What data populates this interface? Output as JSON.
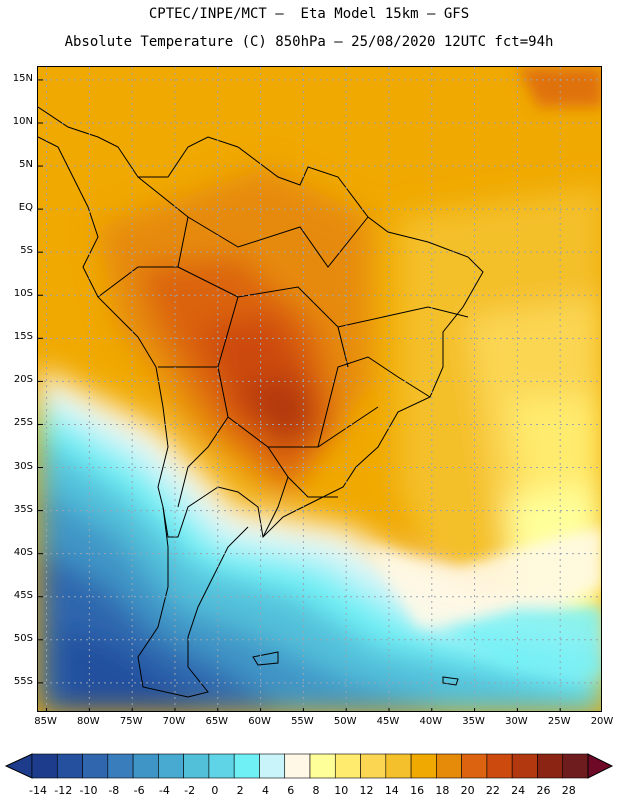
{
  "header": {
    "line1": "CPTEC/INPE/MCT –  Eta Model 15km – GFS",
    "line2": "Absolute Temperature (C) 850hPa – 25/08/2020 12UTC fct=94h"
  },
  "map": {
    "lat_labels": [
      "15N",
      "10N",
      "5N",
      "EQ",
      "5S",
      "10S",
      "15S",
      "20S",
      "25S",
      "30S",
      "35S",
      "40S",
      "45S",
      "50S",
      "55S"
    ],
    "lon_labels": [
      "85W",
      "80W",
      "75W",
      "70W",
      "65W",
      "60W",
      "55W",
      "50W",
      "45W",
      "40W",
      "35W",
      "30W",
      "25W",
      "20W"
    ],
    "lat_values": [
      15,
      10,
      5,
      0,
      -5,
      -10,
      -15,
      -20,
      -25,
      -30,
      -35,
      -40,
      -45,
      -50,
      -55
    ],
    "lon_values": [
      -85,
      -80,
      -75,
      -70,
      -65,
      -60,
      -55,
      -50,
      -45,
      -40,
      -35,
      -30,
      -25,
      -20
    ],
    "lat_range": [
      -58.5,
      16.5
    ],
    "lon_range": [
      -86,
      -20
    ]
  },
  "colorbar": {
    "labels": [
      "-14",
      "-12",
      "-10",
      "-8",
      "-6",
      "-4",
      "-2",
      "0",
      "2",
      "4",
      "6",
      "8",
      "10",
      "12",
      "14",
      "16",
      "18",
      "20",
      "22",
      "24",
      "26",
      "28"
    ],
    "low_color": "#1e3c8c",
    "high_color": "#6e0a28",
    "colors": [
      "#1e3c8c",
      "#24509e",
      "#2f66ae",
      "#3a7dbc",
      "#3f95c6",
      "#48aad0",
      "#53c0da",
      "#5fd4e6",
      "#6ff0f5",
      "#c8f4fa",
      "#fff8e6",
      "#ffff9a",
      "#ffeb6e",
      "#fbd653",
      "#f4c02b",
      "#f0a900",
      "#e68a0a",
      "#dc6410",
      "#cc4a0e",
      "#b23810",
      "#8c2414",
      "#6e1c1e"
    ]
  }
}
